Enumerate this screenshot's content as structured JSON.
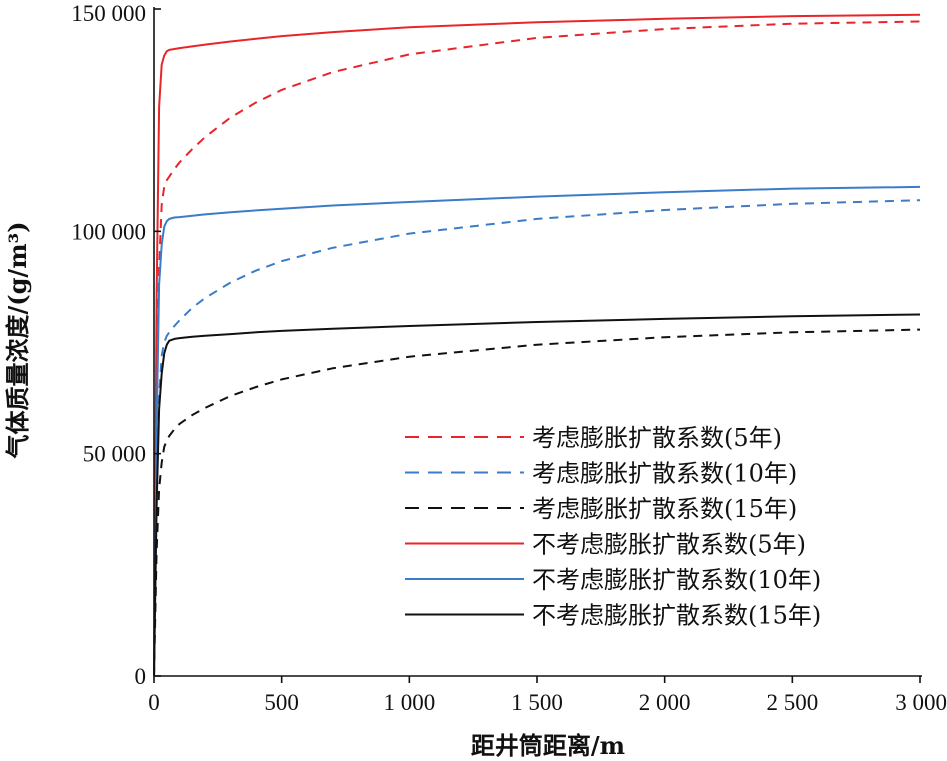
{
  "chart_data": {
    "type": "line",
    "title": "",
    "xlabel": "距井筒距离/m",
    "ylabel": "气体质量浓度/(g/m³)",
    "xlim": [
      0,
      3000
    ],
    "ylim": [
      0,
      150000
    ],
    "x_ticks": [
      0,
      500,
      1000,
      1500,
      2000,
      2500,
      3000
    ],
    "x_tick_labels": [
      "0",
      "500",
      "1 000",
      "1 500",
      "2 000",
      "2 500",
      "3 000"
    ],
    "y_ticks": [
      0,
      50000,
      100000,
      150000
    ],
    "y_tick_labels": [
      "0",
      "50 000",
      "100 000",
      "150 000"
    ],
    "grid": false,
    "legend_position": "lower-right",
    "x": [
      0,
      10,
      20,
      30,
      40,
      50,
      60,
      80,
      100,
      150,
      200,
      300,
      400,
      500,
      700,
      1000,
      1500,
      2000,
      2500,
      3000
    ],
    "series": [
      {
        "name": "考虑膨胀扩散系数(5年)",
        "color": "#e8252a",
        "style": "dashed",
        "values": [
          0,
          62000,
          92000,
          106000,
          110000,
          111500,
          112300,
          114000,
          115500,
          118500,
          121200,
          125600,
          129000,
          131800,
          135800,
          139800,
          143500,
          145500,
          146700,
          147200
        ]
      },
      {
        "name": "考虑膨胀扩散系数(10年)",
        "color": "#3b7cc9",
        "style": "dashed",
        "values": [
          0,
          45000,
          63000,
          72000,
          75000,
          76500,
          77300,
          78700,
          80000,
          82800,
          85000,
          88500,
          91200,
          93300,
          96300,
          99500,
          102800,
          104800,
          106200,
          107000
        ]
      },
      {
        "name": "考虑膨胀扩散系数(15年)",
        "color": "#111111",
        "style": "dashed",
        "values": [
          0,
          28000,
          42000,
          48000,
          51500,
          53000,
          54000,
          55500,
          56700,
          58700,
          60300,
          63000,
          65000,
          66700,
          69200,
          71800,
          74500,
          76200,
          77300,
          77900
        ]
      },
      {
        "name": "不考虑膨胀扩散系数(5年)",
        "color": "#e8252a",
        "style": "solid",
        "values": [
          0,
          85000,
          128000,
          137500,
          139500,
          140500,
          140800,
          141000,
          141200,
          141600,
          142000,
          142700,
          143300,
          143900,
          144800,
          145900,
          147000,
          147800,
          148400,
          148700
        ]
      },
      {
        "name": "不考虑膨胀扩散系数(10年)",
        "color": "#3b7cc9",
        "style": "solid",
        "values": [
          0,
          55000,
          88000,
          97000,
          101000,
          102300,
          102800,
          103100,
          103200,
          103500,
          103800,
          104300,
          104700,
          105100,
          105800,
          106600,
          107800,
          108800,
          109600,
          110000
        ]
      },
      {
        "name": "不考虑膨胀扩散系数(15年)",
        "color": "#111111",
        "style": "solid",
        "values": [
          0,
          38000,
          60000,
          68000,
          72500,
          74500,
          75400,
          75800,
          76000,
          76300,
          76500,
          76900,
          77300,
          77600,
          78100,
          78700,
          79600,
          80300,
          80900,
          81300
        ]
      }
    ],
    "legend_order": [
      0,
      1,
      2,
      3,
      4,
      5
    ]
  }
}
